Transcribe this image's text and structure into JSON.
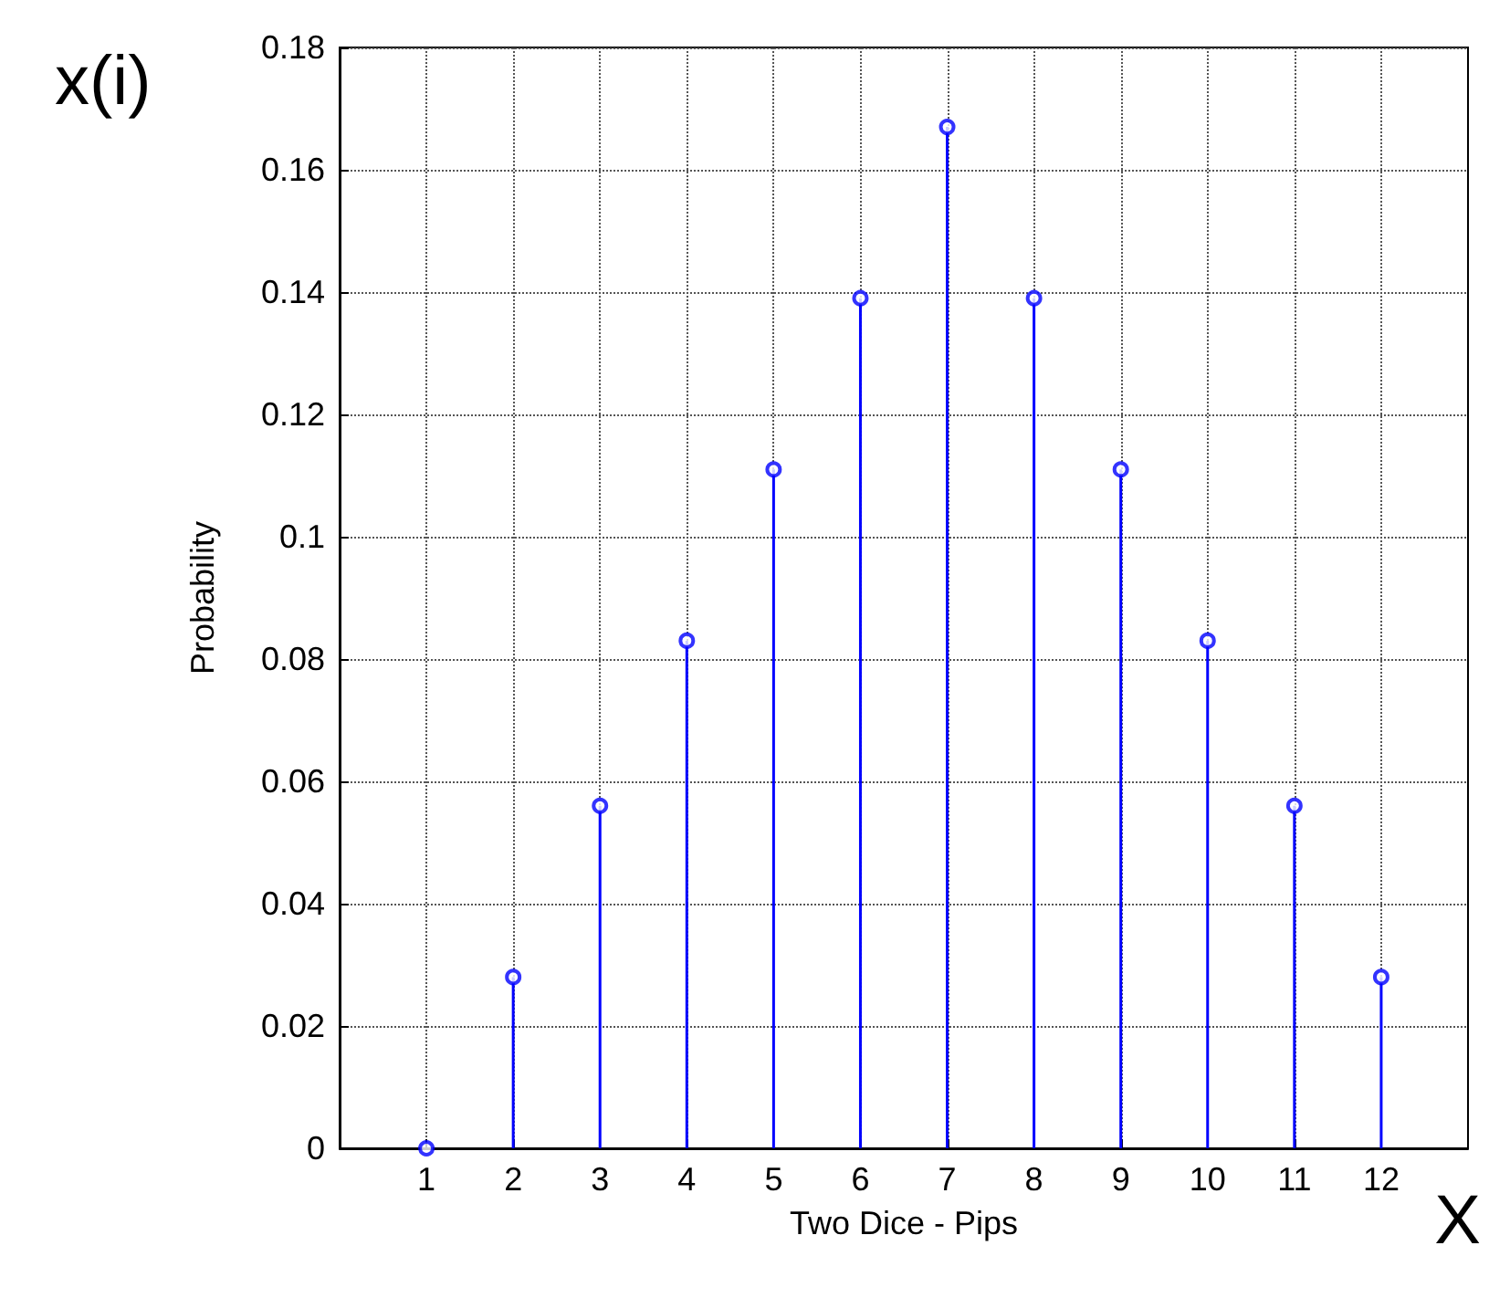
{
  "chart_data": {
    "type": "lollipop",
    "xlabel": "Two Dice - Pips",
    "ylabel": "Probability",
    "annotations": [
      "x(i)",
      "X"
    ],
    "x": [
      1,
      2,
      3,
      4,
      5,
      6,
      7,
      8,
      9,
      10,
      11,
      12
    ],
    "series": [
      {
        "color": "#0000ff",
        "values": [
          0,
          0.028,
          0.056,
          0.083,
          0.111,
          0.139,
          0.167,
          0.139,
          0.111,
          0.083,
          0.056,
          0.028
        ]
      }
    ],
    "xlim": [
      0,
      13
    ],
    "xticks": [
      1,
      2,
      3,
      4,
      5,
      6,
      7,
      8,
      9,
      10,
      11,
      12
    ],
    "ylim": [
      0,
      0.18
    ],
    "yticks": [
      0,
      0.02,
      0.04,
      0.06,
      0.08,
      0.1,
      0.12,
      0.14,
      0.16,
      0.18
    ],
    "grid": true,
    "marker": "circle"
  }
}
